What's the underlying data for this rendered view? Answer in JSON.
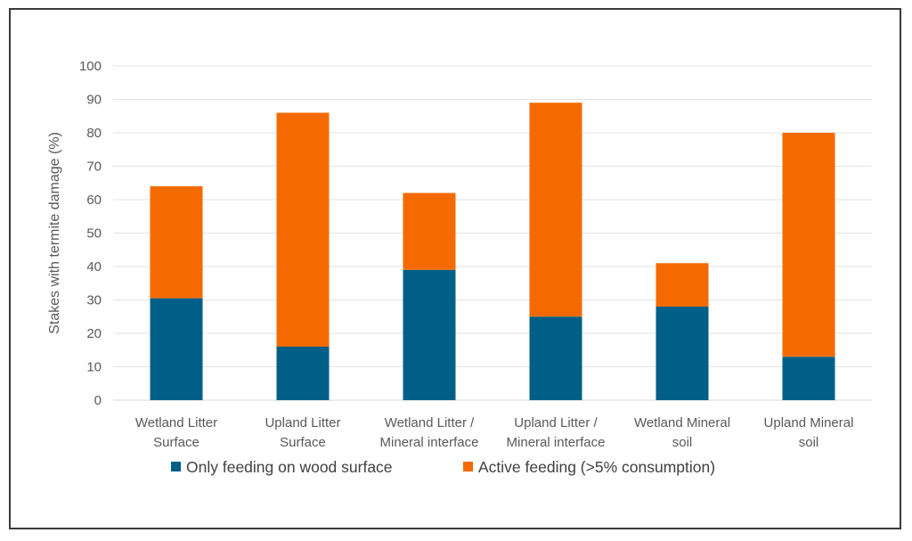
{
  "chart_data": {
    "type": "bar",
    "stacked": true,
    "title": "",
    "xlabel": "",
    "ylabel": "Stakes with termite damage (%)",
    "ylim": [
      0,
      100
    ],
    "yticks": [
      0,
      10,
      20,
      30,
      40,
      50,
      60,
      70,
      80,
      90,
      100
    ],
    "grid": true,
    "legend_position": "bottom",
    "categories": [
      [
        "Wetland Litter",
        "Surface"
      ],
      [
        "Upland Litter",
        "Surface"
      ],
      [
        "Wetland Litter /",
        "Mineral interface"
      ],
      [
        "Upland Litter /",
        "Mineral interface"
      ],
      [
        "Wetland Mineral",
        "soil"
      ],
      [
        "Upland Mineral",
        "soil"
      ]
    ],
    "series": [
      {
        "name": "Only feeding on wood surface",
        "color": "#005f87",
        "values": [
          30.5,
          16,
          39,
          25,
          28,
          13
        ]
      },
      {
        "name": "Active feeding (>5% consumption)",
        "color": "#f56a00",
        "values": [
          33.5,
          70,
          23,
          64,
          13,
          67
        ]
      }
    ]
  }
}
